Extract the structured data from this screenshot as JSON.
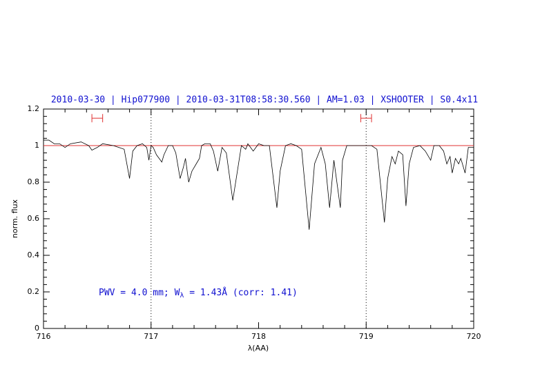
{
  "chart_data": {
    "type": "line",
    "title": "2010-03-30 | Hip077900 | 2010-03-31T08:58:30.560 | AM=1.03 | XSHOOTER | S0.4x11",
    "xlabel": "λ(AA)",
    "ylabel": "norm. flux",
    "annotation": [
      "PWV = 4.0 mm; W",
      "λ",
      " = 1.43Å (corr: 1.41)"
    ],
    "xlim": [
      716,
      720
    ],
    "ylim": [
      0,
      1.2
    ],
    "xticks": [
      716,
      717,
      718,
      719,
      720
    ],
    "yticks": [
      0,
      0.2,
      0.4,
      0.6,
      0.8,
      1,
      1.2
    ],
    "minor_ticks_per_major": 5,
    "reference_line": 1,
    "reference_color": "#e03030",
    "vlines": [
      717,
      719
    ],
    "markers": {
      "color": "#e03030",
      "y": 1.15,
      "ranges": [
        [
          716.45,
          716.55
        ],
        [
          718.95,
          719.05
        ]
      ]
    },
    "series": [
      {
        "name": "flux",
        "color": "#000000",
        "x": [
          716.0,
          716.05,
          716.1,
          716.15,
          716.2,
          716.25,
          716.35,
          716.42,
          716.45,
          716.5,
          716.55,
          716.65,
          716.7,
          716.75,
          716.8,
          716.83,
          716.87,
          716.92,
          716.96,
          716.98,
          717.0,
          717.02,
          717.05,
          717.1,
          717.12,
          717.16,
          717.2,
          717.23,
          717.27,
          717.3,
          717.32,
          717.35,
          717.38,
          717.42,
          717.45,
          717.47,
          717.5,
          717.55,
          717.58,
          717.62,
          717.66,
          717.7,
          717.76,
          717.8,
          717.84,
          717.88,
          717.9,
          717.95,
          718.0,
          718.05,
          718.1,
          718.17,
          718.2,
          718.25,
          718.3,
          718.35,
          718.4,
          718.47,
          718.52,
          718.58,
          718.62,
          718.66,
          718.7,
          718.76,
          718.78,
          718.82,
          718.86,
          718.9,
          719.0,
          719.05,
          719.1,
          719.17,
          719.2,
          719.24,
          719.27,
          719.3,
          719.34,
          719.37,
          719.4,
          719.44,
          719.5,
          719.55,
          719.6,
          719.63,
          719.68,
          719.72,
          719.75,
          719.78,
          719.8,
          719.83,
          719.86,
          719.88,
          719.92,
          719.95,
          720.0
        ],
        "values": [
          1.03,
          1.03,
          1.01,
          1.01,
          0.99,
          1.01,
          1.02,
          1.0,
          0.975,
          0.99,
          1.01,
          1.0,
          0.99,
          0.98,
          0.82,
          0.97,
          1.0,
          1.01,
          0.99,
          0.92,
          1.0,
          0.99,
          0.95,
          0.91,
          0.95,
          1.0,
          1.0,
          0.96,
          0.82,
          0.88,
          0.93,
          0.8,
          0.86,
          0.9,
          0.93,
          1.0,
          1.01,
          1.01,
          0.97,
          0.86,
          0.99,
          0.96,
          0.7,
          0.85,
          1.0,
          0.98,
          1.01,
          0.97,
          1.01,
          1.0,
          1.0,
          0.66,
          0.86,
          1.0,
          1.01,
          1.0,
          0.98,
          0.54,
          0.9,
          0.99,
          0.9,
          0.66,
          0.92,
          0.66,
          0.92,
          1.0,
          1.0,
          1.0,
          1.0,
          1.0,
          0.98,
          0.58,
          0.82,
          0.94,
          0.9,
          0.97,
          0.95,
          0.67,
          0.9,
          0.99,
          1.0,
          0.97,
          0.92,
          1.0,
          1.0,
          0.97,
          0.9,
          0.94,
          0.85,
          0.93,
          0.9,
          0.93,
          0.85,
          0.99,
          0.99
        ]
      }
    ]
  }
}
